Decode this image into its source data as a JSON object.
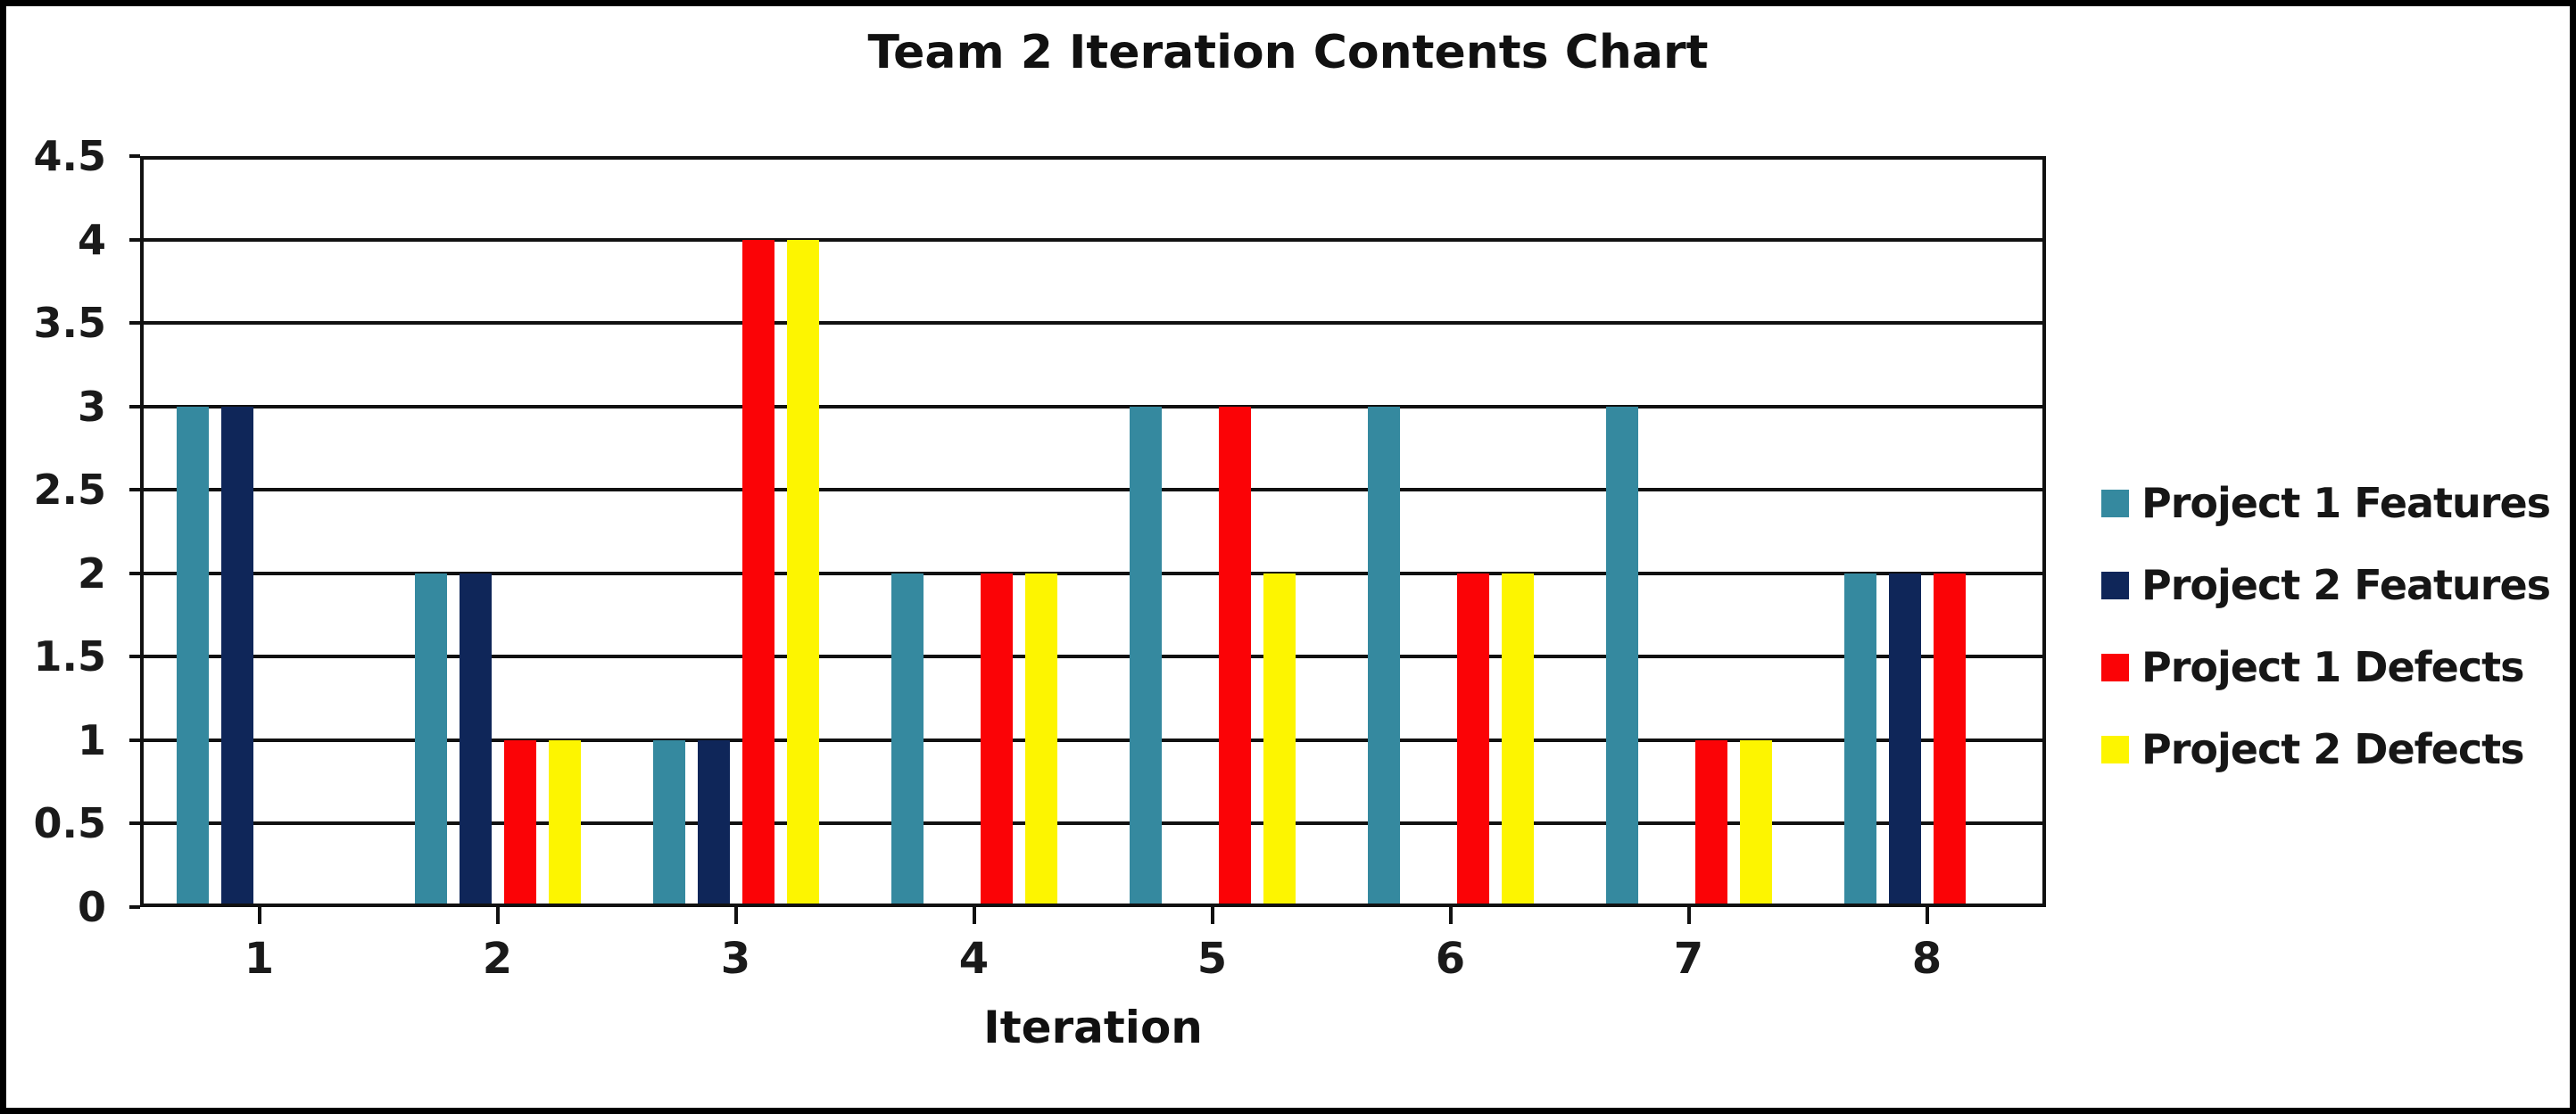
{
  "chart_data": {
    "type": "bar",
    "title": "Team 2 Iteration Contents Chart",
    "xlabel": "Iteration",
    "ylabel": "",
    "categories": [
      "1",
      "2",
      "3",
      "4",
      "5",
      "6",
      "7",
      "8"
    ],
    "series": [
      {
        "name": "Project 1 Features",
        "color": "#35899F",
        "values": [
          3,
          2,
          1,
          2,
          3,
          3,
          3,
          2
        ]
      },
      {
        "name": "Project 2 Features",
        "color": "#0F2659",
        "values": [
          3,
          2,
          1,
          0,
          0,
          0,
          0,
          2
        ]
      },
      {
        "name": "Project 1 Defects",
        "color": "#FB0306",
        "values": [
          0,
          1,
          4,
          2,
          3,
          2,
          1,
          2
        ]
      },
      {
        "name": "Project 2 Defects",
        "color": "#FDF500",
        "values": [
          0,
          1,
          4,
          2,
          2,
          2,
          1,
          0
        ]
      }
    ],
    "ylim": [
      0,
      4.5
    ],
    "ytick_step": 0.5,
    "yticks": [
      "0",
      "0.5",
      "1",
      "1.5",
      "2",
      "2.5",
      "3",
      "3.5",
      "4",
      "4.5"
    ],
    "grid": true,
    "legend_position": "right",
    "frame_color": "#000000",
    "grid_color": "#111111"
  }
}
